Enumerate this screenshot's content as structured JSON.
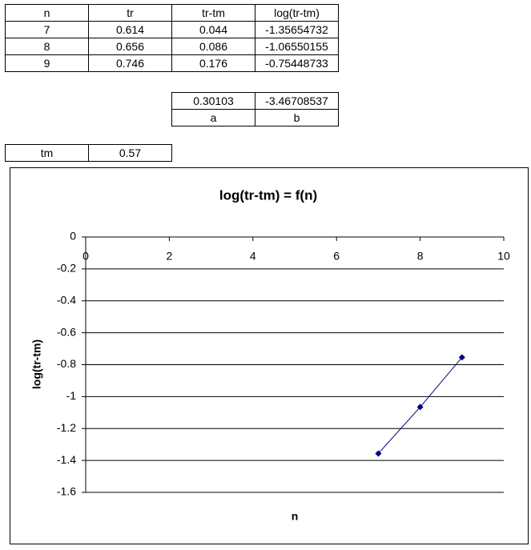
{
  "table": {
    "header": [
      "n",
      "tr",
      "tr-tm",
      "log(tr-tm)"
    ],
    "rows": [
      [
        "7",
        "0.614",
        "0.044",
        "-1.35654732"
      ],
      [
        "8",
        "0.656",
        "0.086",
        "-1.06550155"
      ],
      [
        "9",
        "0.746",
        "0.176",
        "-0.75448733"
      ]
    ]
  },
  "coefficients": {
    "values": [
      "0.30103",
      "-3.46708537"
    ],
    "labels": [
      "a",
      "b"
    ]
  },
  "tm": {
    "label": "tm",
    "value": "0.57"
  },
  "chart_data": {
    "type": "scatter",
    "title": "log(tr-tm) = f(n)",
    "x_label": "n",
    "y_label": "log(tr-tm)",
    "x": [
      7,
      8,
      9
    ],
    "values": [
      -1.35654732,
      -1.06550155,
      -0.75448733
    ],
    "color": "#000080",
    "line": true,
    "marker": "diamond",
    "xlim": [
      0,
      10
    ],
    "xticks": [
      0,
      2,
      4,
      6,
      8,
      10
    ],
    "ylim": [
      -1.6,
      0
    ],
    "yticks": [
      0,
      -0.2,
      -0.4,
      -0.6,
      -0.8,
      -1,
      -1.2,
      -1.4,
      -1.6
    ],
    "grid": true
  }
}
